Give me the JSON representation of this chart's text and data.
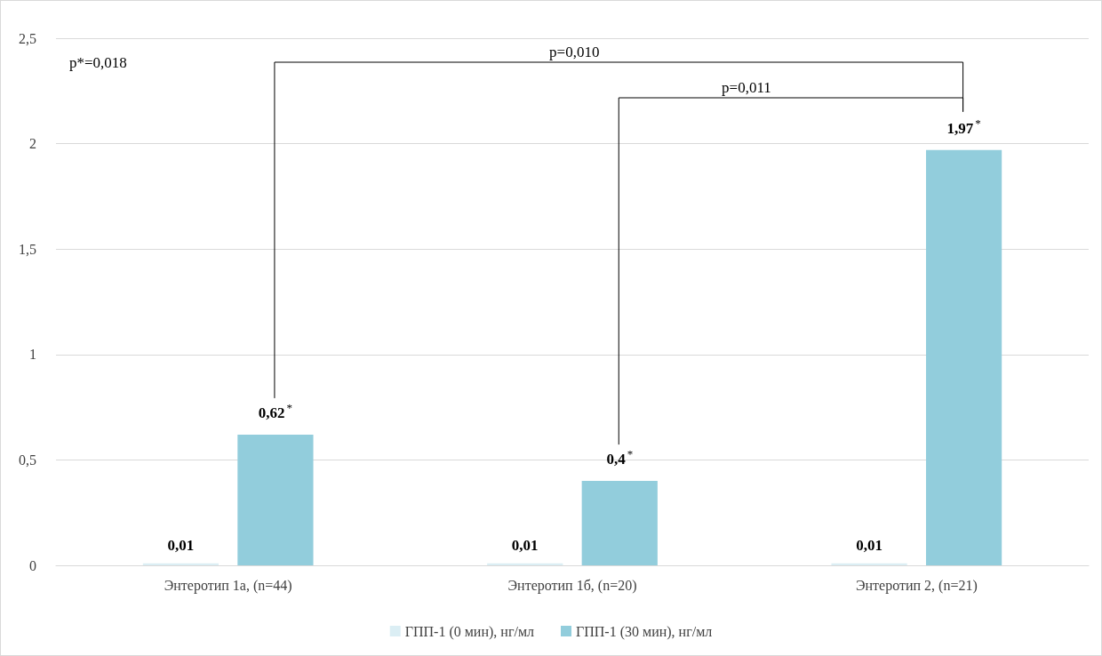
{
  "chart_data": {
    "type": "bar",
    "categories": [
      "Энтеротип 1а, (n=44)",
      "Энтеротип 1б, (n=20)",
      "Энтеротип 2, (n=21)"
    ],
    "series": [
      {
        "name": "ГПП-1 (0 мин), нг/мл",
        "color": "#dbeef4",
        "values": [
          0.01,
          0.01,
          0.01
        ],
        "value_labels": [
          "0,01",
          "0,01",
          "0,01"
        ]
      },
      {
        "name": "ГПП-1 (30 мин), нг/мл",
        "color": "#92cddc",
        "values": [
          0.62,
          0.4,
          1.97
        ],
        "value_labels": [
          "0,62$^{*}$",
          "0,4$^{*}$",
          "1,97$^{*}$"
        ]
      }
    ],
    "ylim": [
      0,
      2.5
    ],
    "yticks": [
      0,
      {
        "value": 0.5,
        "label": "0,5"
      },
      1,
      {
        "value": 1.5,
        "label": "1,5"
      },
      2,
      {
        "value": 2.5,
        "label": "2,5"
      }
    ],
    "grid": "y",
    "legend": "bottom",
    "annotations": [
      "p*=0,018",
      "p=0,010",
      "p=0,011"
    ]
  }
}
